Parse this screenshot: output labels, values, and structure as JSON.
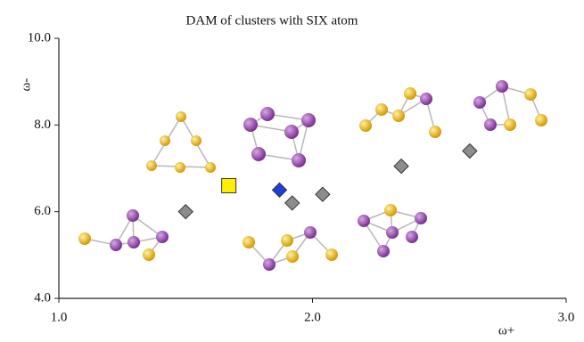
{
  "chart_data": {
    "type": "scatter",
    "title": "DAM of clusters with SIX atom",
    "x_label": "ω+",
    "y_label": "ω-",
    "xlim": [
      1.0,
      3.0
    ],
    "ylim": [
      4.0,
      10.0
    ],
    "xticks": [
      {
        "value": 1.0,
        "label": "1.0"
      },
      {
        "value": 2.0,
        "label": "2.0"
      },
      {
        "value": 3.0,
        "label": "3.0"
      }
    ],
    "yticks": [
      {
        "value": 4.0,
        "label": "4.0"
      },
      {
        "value": 6.0,
        "label": "6.0"
      },
      {
        "value": 8.0,
        "label": "8.0"
      },
      {
        "value": 10.0,
        "label": "10.0"
      }
    ],
    "series": [
      {
        "color": "#8c8c8c",
        "marker": "diamond",
        "x": [
          1.5,
          1.92,
          2.04,
          2.35,
          2.62
        ],
        "values": [
          6.0,
          6.2,
          6.4,
          7.05,
          7.4
        ]
      },
      {
        "color": "#ffee00",
        "marker": "square",
        "x": [
          1.67
        ],
        "values": [
          6.6
        ]
      },
      {
        "color": "#1f3fd8",
        "marker": "diamond",
        "x": [
          1.87
        ],
        "values": [
          6.5
        ]
      }
    ]
  }
}
